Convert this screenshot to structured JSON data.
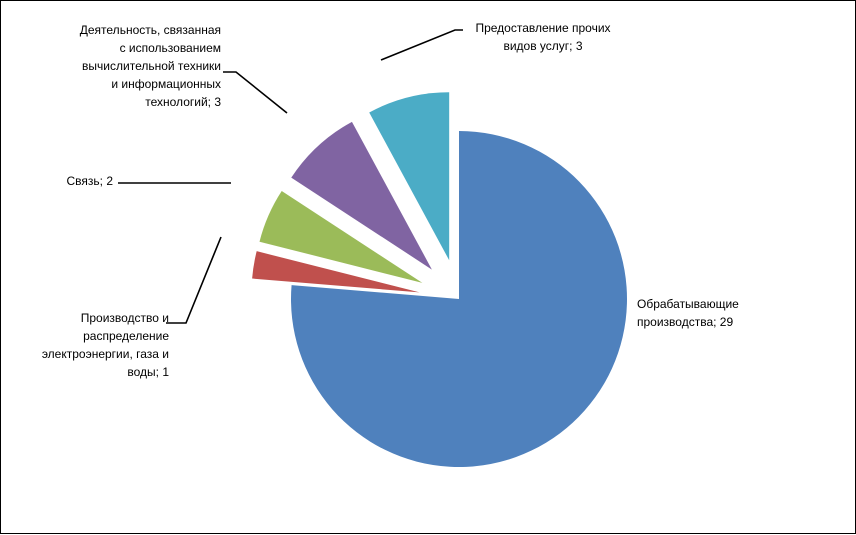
{
  "chart_data": {
    "type": "pie",
    "legend": "none",
    "slices": [
      {
        "category": "Обрабатывающие производства",
        "value": 29,
        "color": "#4F81BD",
        "label_lines": [
          "Обрабатывающие",
          "производства; 29"
        ]
      },
      {
        "category": "Производство и распределение электроэнергии, газа и воды",
        "value": 1,
        "color": "#C0504D",
        "label_lines": [
          "Производство и",
          "распределение",
          "электроэнергии, газа и",
          "воды; 1"
        ]
      },
      {
        "category": "Связь",
        "value": 2,
        "color": "#9BBB59",
        "label_lines": [
          "Связь; 2"
        ]
      },
      {
        "category": "Деятельность, связанная с использованием вычислительной техники и информационных технологий",
        "value": 3,
        "color": "#8064A2",
        "label_lines": [
          "Деятельность, связанная",
          "с использованием",
          "вычислительной техники",
          "и информационных",
          "технологий; 3"
        ]
      },
      {
        "category": "Предоставление прочих видов услуг",
        "value": 3,
        "color": "#4BACC6",
        "label_lines": [
          "Предоставление прочих",
          "видов услуг; 3"
        ]
      }
    ]
  }
}
